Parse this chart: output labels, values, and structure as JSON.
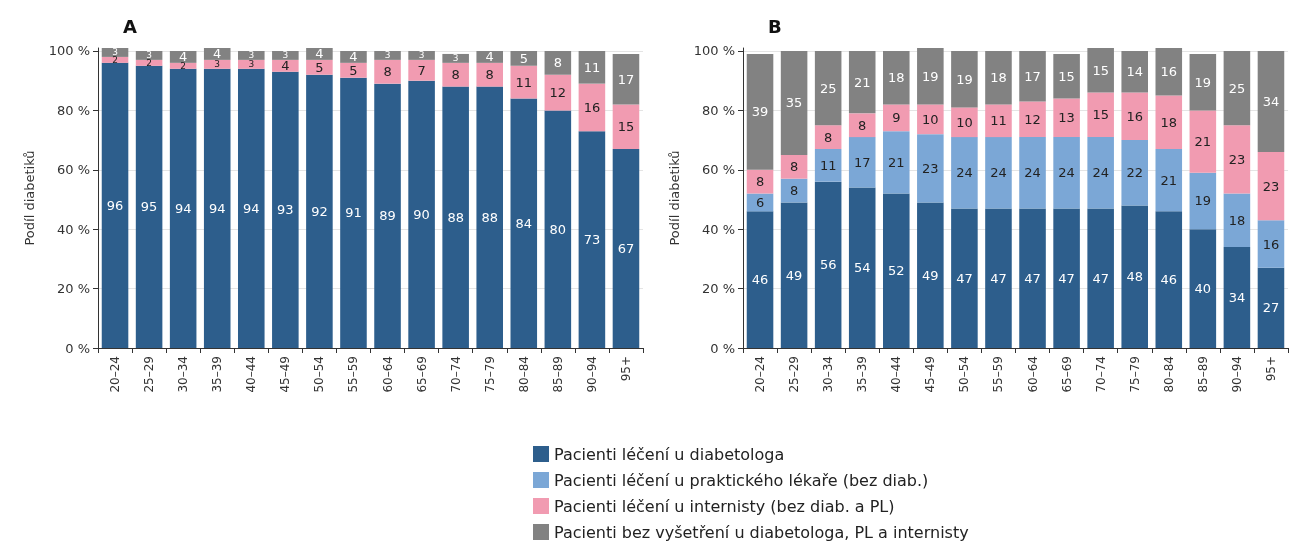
{
  "chart_data": [
    {
      "type": "bar",
      "title": "A",
      "ylabel": "Podíl diabetiků",
      "stacked": true,
      "data_labels": true,
      "grid": "y",
      "categories": [
        "20–24",
        "25–29",
        "30–34",
        "35–39",
        "40–44",
        "45–49",
        "50–54",
        "55–59",
        "60–64",
        "65–69",
        "70–74",
        "75–79",
        "80–84",
        "85–89",
        "90–94",
        "95+"
      ],
      "ylim": [
        0,
        101
      ],
      "yticks": [
        {
          "value": 0,
          "label": "0 %"
        },
        {
          "value": 20,
          "label": "20 %"
        },
        {
          "value": 40,
          "label": "40 %"
        },
        {
          "value": 60,
          "label": "60 %"
        },
        {
          "value": 80,
          "label": "80 %"
        },
        {
          "value": 100,
          "label": "100 %"
        }
      ],
      "series": [
        {
          "color": "#2d5e8c",
          "values": [
            96,
            95,
            94,
            94,
            94,
            93,
            92,
            91,
            89,
            90,
            88,
            88,
            84,
            80,
            73,
            67
          ]
        },
        {
          "color": "#f19bb1",
          "values": [
            2,
            2,
            2,
            3,
            3,
            4,
            5,
            5,
            8,
            7,
            8,
            8,
            11,
            12,
            16,
            15
          ]
        },
        {
          "color": "#828282",
          "values": [
            3,
            3,
            4,
            4,
            3,
            3,
            4,
            4,
            3,
            3,
            3,
            4,
            5,
            8,
            11,
            17
          ]
        }
      ]
    },
    {
      "type": "bar",
      "title": "B",
      "ylabel": "Podíl diabetiků",
      "stacked": true,
      "data_labels": true,
      "grid": "y",
      "legend": "bottom",
      "categories": [
        "20–24",
        "25–29",
        "30–34",
        "35–39",
        "40–44",
        "45–49",
        "50–54",
        "55–59",
        "60–64",
        "65–69",
        "70–74",
        "75–79",
        "80–84",
        "85–89",
        "90–94",
        "95+"
      ],
      "ylim": [
        0,
        101
      ],
      "yticks": [
        {
          "value": 0,
          "label": "0 %"
        },
        {
          "value": 20,
          "label": "20 %"
        },
        {
          "value": 40,
          "label": "40 %"
        },
        {
          "value": 60,
          "label": "60 %"
        },
        {
          "value": 80,
          "label": "80 %"
        },
        {
          "value": 100,
          "label": "100 %"
        }
      ],
      "series": [
        {
          "name": "Pacienti léčení u diabetologa",
          "color": "#2d5e8c",
          "values": [
            46,
            49,
            56,
            54,
            52,
            49,
            47,
            47,
            47,
            47,
            47,
            48,
            46,
            40,
            34,
            27
          ]
        },
        {
          "name": "Pacienti léčení u praktického lékaře (bez diab.)",
          "color": "#7ba7d6",
          "values": [
            6,
            8,
            11,
            17,
            21,
            23,
            24,
            24,
            24,
            24,
            24,
            22,
            21,
            19,
            18,
            16
          ]
        },
        {
          "name": "Pacienti léčení u internisty (bez diab. a PL)",
          "color": "#f19bb1",
          "values": [
            8,
            8,
            8,
            8,
            9,
            10,
            10,
            11,
            12,
            13,
            15,
            16,
            18,
            21,
            23,
            23
          ]
        },
        {
          "name": "Pacienti bez vyšetření u diabetologa, PL a internisty",
          "color": "#828282",
          "values": [
            39,
            35,
            25,
            21,
            18,
            19,
            19,
            18,
            17,
            15,
            15,
            14,
            16,
            19,
            25,
            34
          ]
        }
      ]
    }
  ]
}
